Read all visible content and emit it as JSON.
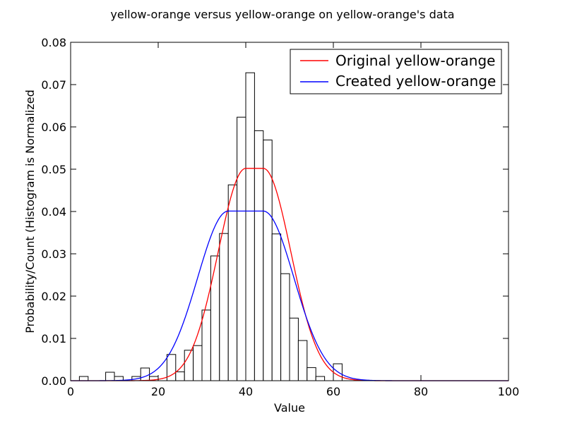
{
  "chart_data": {
    "type": "bar",
    "title": "yellow-orange versus yellow-orange on yellow-orange's data",
    "xlabel": "Value",
    "ylabel": "Probability/Count (Histogram is Normalized",
    "xlim": [
      0,
      100
    ],
    "ylim": [
      0,
      0.08
    ],
    "x_ticks": [
      0,
      20,
      40,
      60,
      80,
      100
    ],
    "x_tick_labels": [
      "0",
      "20",
      "40",
      "60",
      "80",
      "100"
    ],
    "y_ticks": [
      0.0,
      0.01,
      0.02,
      0.03,
      0.04,
      0.05,
      0.06,
      0.07,
      0.08
    ],
    "y_tick_labels": [
      "0.00",
      "0.01",
      "0.02",
      "0.03",
      "0.04",
      "0.05",
      "0.06",
      "0.07",
      "0.08"
    ],
    "grid": false,
    "legend_position": "top-right",
    "histogram": {
      "bin_width": 2,
      "bin_starts": [
        0,
        2,
        4,
        6,
        8,
        10,
        12,
        14,
        16,
        18,
        20,
        22,
        24,
        26,
        28,
        30,
        32,
        34,
        36,
        38,
        40,
        42,
        44,
        46,
        48,
        50,
        52,
        54,
        56,
        58,
        60,
        62
      ],
      "values": [
        0,
        0.001,
        0,
        0,
        0.002,
        0.001,
        0,
        0.001,
        0.003,
        0.001,
        0,
        0.0062,
        0.0021,
        0.0072,
        0.0083,
        0.0167,
        0.0295,
        0.0348,
        0.0463,
        0.0623,
        0.0728,
        0.0591,
        0.0569,
        0.0347,
        0.0253,
        0.0148,
        0.0095,
        0.0031,
        0.001,
        0,
        0.004,
        0
      ],
      "fill_color": "#ffffff",
      "edge_color": "#000000"
    },
    "series": [
      {
        "name": "Original yellow-orange",
        "color": "#ff0000",
        "peak": 0.0502,
        "plateau": [
          40,
          44
        ],
        "sigma": 6.3
      },
      {
        "name": "Created yellow-orange",
        "color": "#0000ff",
        "peak": 0.0401,
        "plateau": [
          36,
          44
        ],
        "sigma": 7.0
      }
    ]
  }
}
